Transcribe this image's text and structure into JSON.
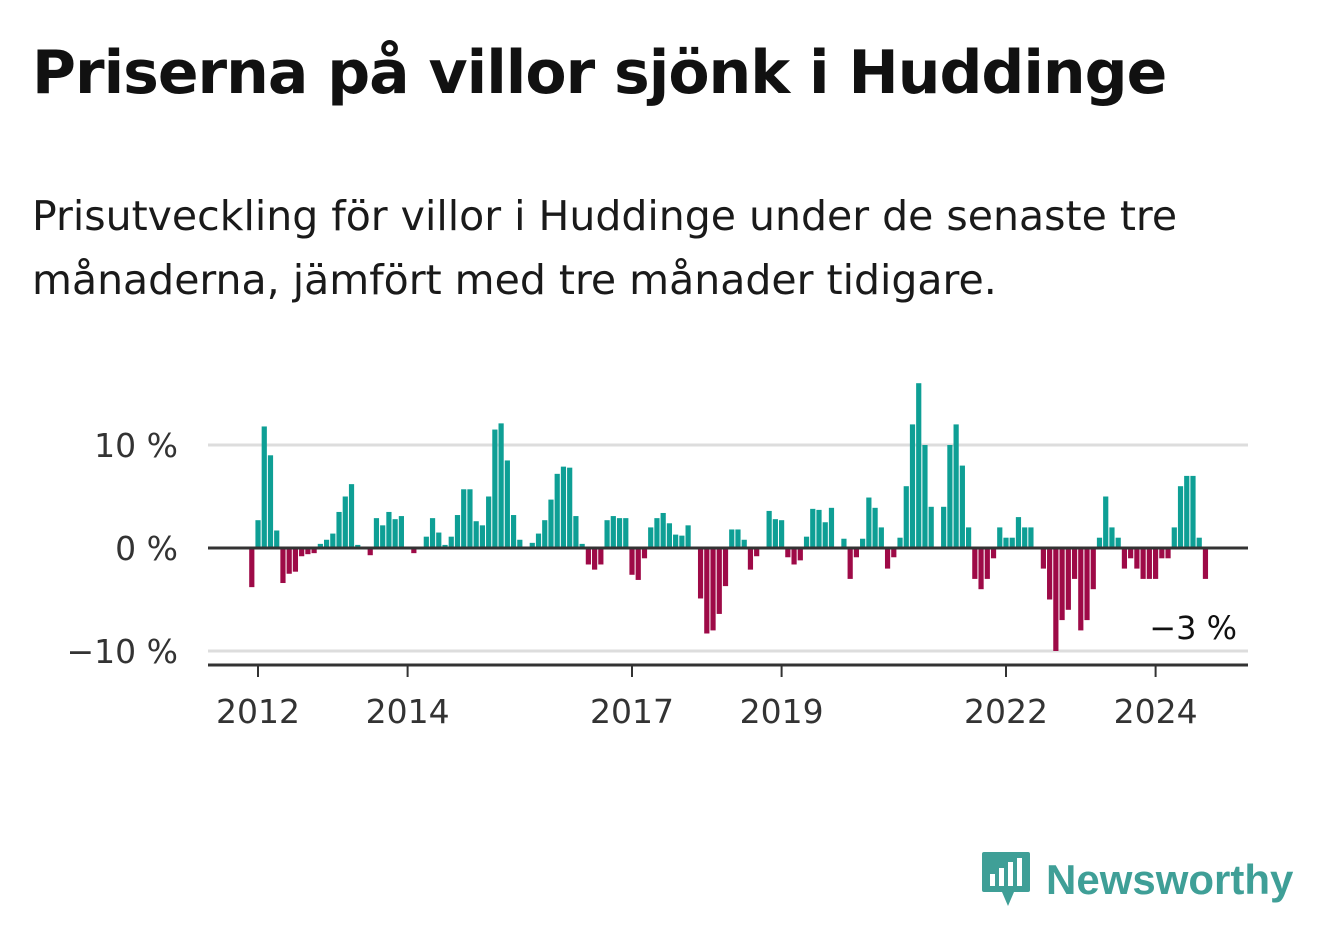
{
  "title": "Priserna på villor sjönk i Huddinge",
  "subtitle": "Prisutveckling för villor i Huddinge under de senaste tre månaderna, jämfört med tre månader tidigare.",
  "brand": {
    "name": "Newsworthy",
    "icon": "bar-chart-bubble-icon",
    "color": "#3f9f97"
  },
  "colors": {
    "positive": "#0e9f95",
    "negative": "#9e0a47",
    "grid": "#dddddd",
    "axis": "#333333"
  },
  "chart_data": {
    "type": "bar",
    "title": "Priserna på villor sjönk i Huddinge",
    "xlabel": "",
    "ylabel": "",
    "ylim": [
      -11.5,
      16.5
    ],
    "yticks": [
      10,
      0,
      -10
    ],
    "ytick_labels": [
      "10 %",
      "0 %",
      "−10 %"
    ],
    "xticks": [
      2012,
      2014,
      2017,
      2019,
      2022,
      2024
    ],
    "xtick_labels": [
      "2012",
      "2014",
      "2017",
      "2019",
      "2022",
      "2024"
    ],
    "x_start": 2011.917,
    "x_step": 0.08333,
    "annotation": {
      "text": "−3 %",
      "at": "last-bar"
    },
    "values": [
      -3.8,
      2.7,
      11.8,
      9.0,
      1.7,
      -3.4,
      -2.5,
      -2.3,
      -0.8,
      -0.6,
      -0.5,
      0.4,
      0.8,
      1.4,
      3.5,
      5.0,
      6.2,
      0.3,
      0.0,
      -0.7,
      2.9,
      2.2,
      3.5,
      2.8,
      3.1,
      0.0,
      -0.5,
      0.0,
      1.1,
      2.9,
      1.5,
      0.3,
      1.1,
      3.2,
      5.7,
      5.7,
      2.6,
      2.2,
      5.0,
      11.5,
      12.1,
      8.5,
      3.2,
      0.8,
      0.0,
      0.5,
      1.4,
      2.7,
      4.7,
      7.2,
      7.9,
      7.8,
      3.1,
      0.4,
      -1.6,
      -2.1,
      -1.6,
      2.7,
      3.1,
      2.9,
      2.9,
      -2.6,
      -3.1,
      -1.0,
      2.0,
      2.9,
      3.4,
      2.4,
      1.3,
      1.2,
      2.2,
      0.0,
      -4.9,
      -8.3,
      -8.0,
      -6.4,
      -3.7,
      1.8,
      1.8,
      0.8,
      -2.1,
      -0.8,
      0.0,
      3.6,
      2.8,
      2.7,
      -0.9,
      -1.6,
      -1.2,
      1.1,
      3.8,
      3.7,
      2.5,
      3.9,
      0.0,
      0.9,
      -3.0,
      -0.9,
      0.9,
      4.9,
      3.9,
      2.0,
      -2.0,
      -0.9,
      1.0,
      6.0,
      12.0,
      16.0,
      10.0,
      4.0,
      0.0,
      4.0,
      10.0,
      12.0,
      8.0,
      2.0,
      -3.0,
      -4.0,
      -3.0,
      -1.0,
      2.0,
      1.0,
      1.0,
      3.0,
      2.0,
      2.0,
      0.0,
      -2.0,
      -5.0,
      -10.0,
      -7.0,
      -6.0,
      -3.0,
      -8.0,
      -7.0,
      -4.0,
      1.0,
      5.0,
      2.0,
      1.0,
      -2.0,
      -1.0,
      -2.0,
      -3.0,
      -3.0,
      -3.0,
      -1.0,
      -1.0,
      2.0,
      6.0,
      7.0,
      7.0,
      1.0,
      -3.0
    ]
  }
}
